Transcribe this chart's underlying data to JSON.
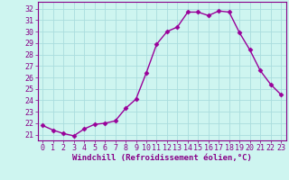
{
  "x": [
    0,
    1,
    2,
    3,
    4,
    5,
    6,
    7,
    8,
    9,
    10,
    11,
    12,
    13,
    14,
    15,
    16,
    17,
    18,
    19,
    20,
    21,
    22,
    23
  ],
  "y": [
    21.8,
    21.4,
    21.1,
    20.9,
    21.5,
    21.9,
    22.0,
    22.2,
    23.3,
    24.1,
    26.4,
    28.9,
    30.0,
    30.4,
    31.7,
    31.7,
    31.4,
    31.8,
    31.7,
    29.9,
    28.4,
    26.6,
    25.4,
    24.5
  ],
  "line_color": "#990099",
  "marker": "D",
  "markersize": 2.5,
  "linewidth": 1.0,
  "bg_color": "#cef5f0",
  "grid_color": "#aadddd",
  "xlabel": "Windchill (Refroidissement éolien,°C)",
  "xlabel_fontsize": 6.5,
  "ylabel_ticks": [
    21,
    22,
    23,
    24,
    25,
    26,
    27,
    28,
    29,
    30,
    31,
    32
  ],
  "xtick_labels": [
    "0",
    "1",
    "2",
    "3",
    "4",
    "5",
    "6",
    "7",
    "8",
    "9",
    "10",
    "11",
    "12",
    "13",
    "14",
    "15",
    "16",
    "17",
    "18",
    "19",
    "20",
    "21",
    "22",
    "23"
  ],
  "xticks": [
    0,
    1,
    2,
    3,
    4,
    5,
    6,
    7,
    8,
    9,
    10,
    11,
    12,
    13,
    14,
    15,
    16,
    17,
    18,
    19,
    20,
    21,
    22,
    23
  ],
  "ylim": [
    20.5,
    32.6
  ],
  "xlim": [
    -0.5,
    23.5
  ],
  "tick_fontsize": 6.0,
  "tick_color": "#880088",
  "axis_label_color": "#880088",
  "spine_color": "#880088"
}
